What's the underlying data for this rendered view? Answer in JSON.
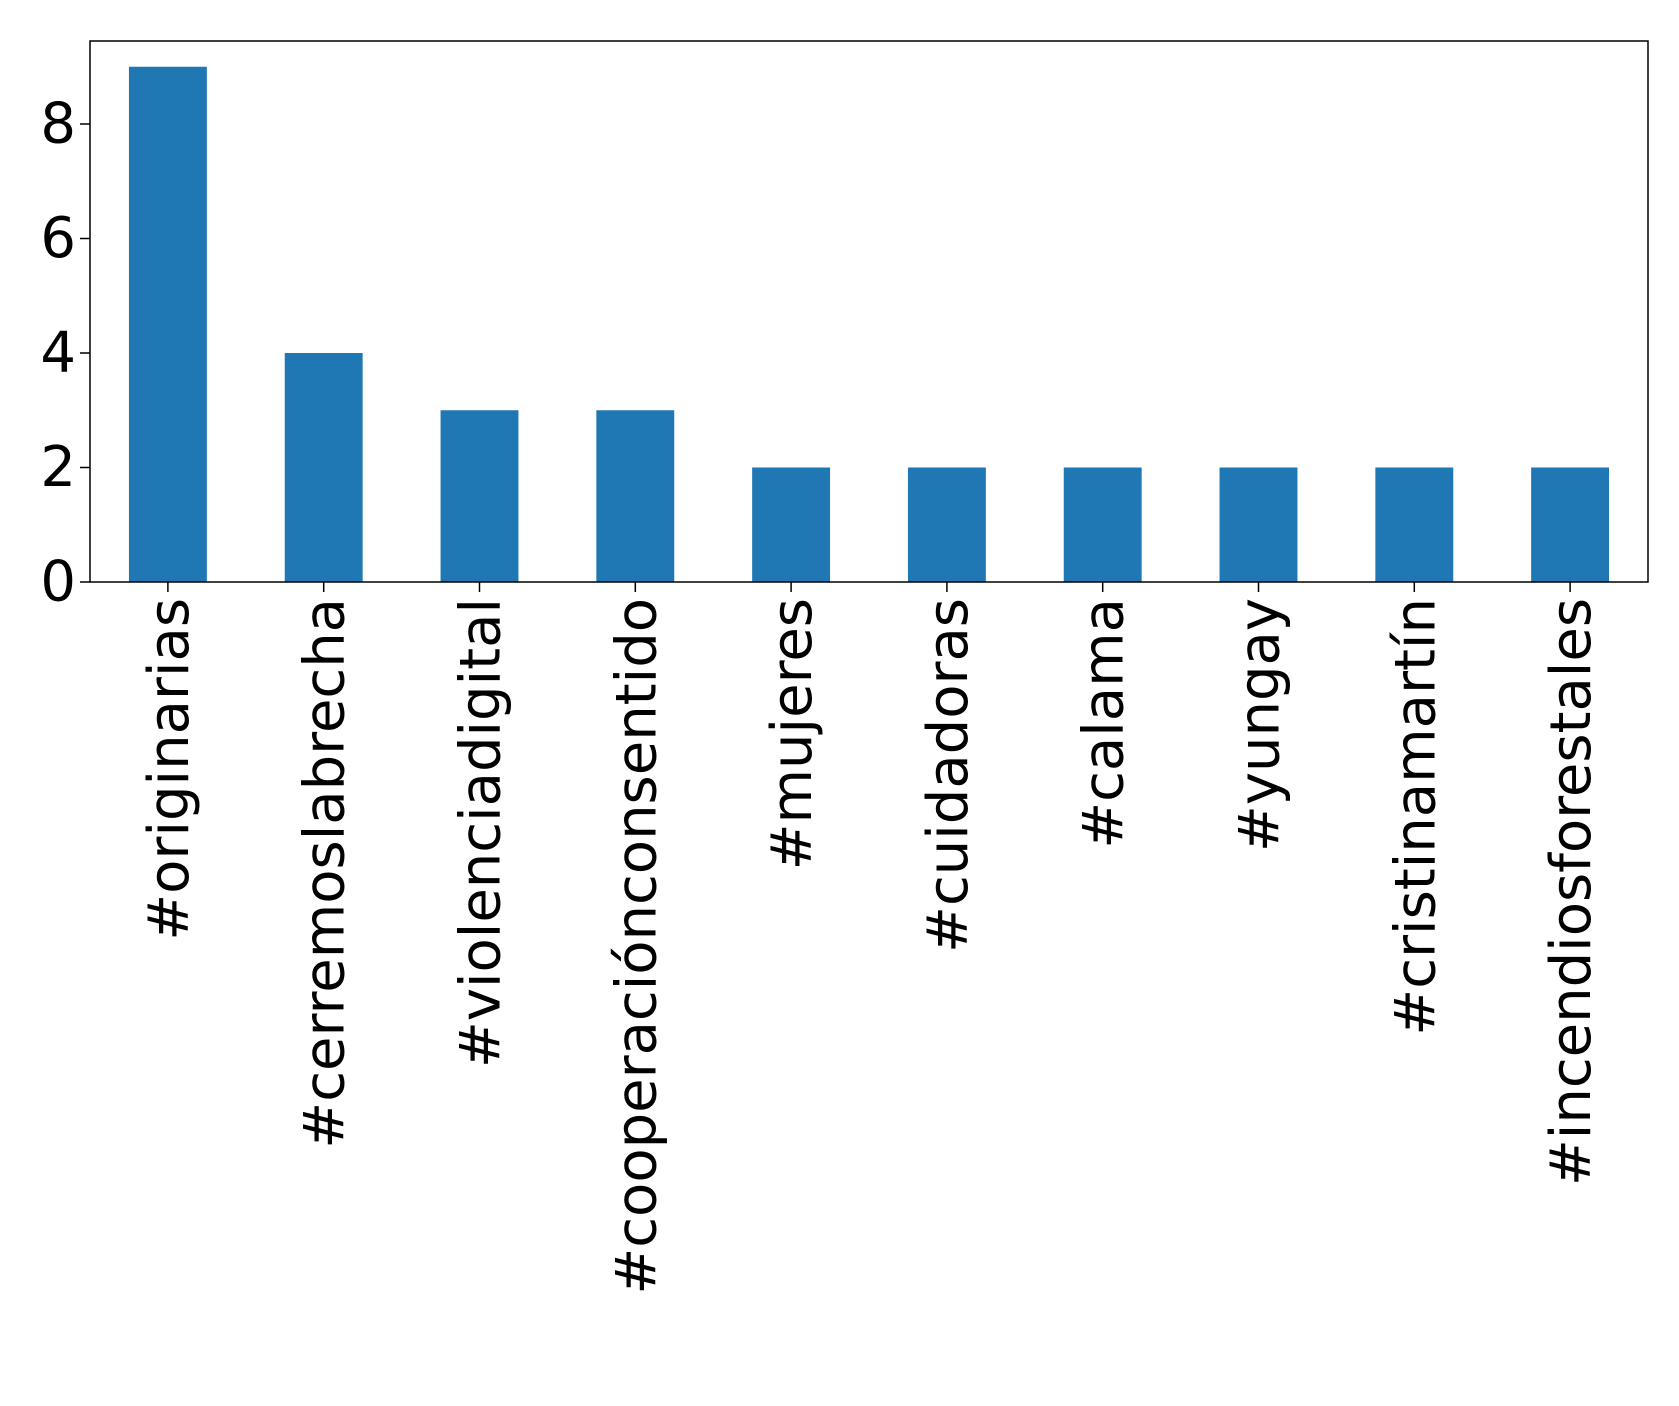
{
  "chart_data": {
    "type": "bar",
    "categories": [
      "#originarias",
      "#cerremoslabrecha",
      "#violenciadigital",
      "#cooperaciónconsentido",
      "#mujeres",
      "#cuidadoras",
      "#calama",
      "#yungay",
      "#cristinamartín",
      "#incendiosforestales"
    ],
    "values": [
      9,
      4,
      3,
      3,
      2,
      2,
      2,
      2,
      2,
      2
    ],
    "title": "",
    "xlabel": "",
    "ylabel": "",
    "ylim": [
      0,
      9.45
    ],
    "yticks": [
      0,
      2,
      4,
      6,
      8
    ],
    "grid": false,
    "legend": "none",
    "x_tick_rotation": "vertical",
    "colors": {
      "bar": "#1f77b4",
      "axis": "#000000",
      "background": "#ffffff"
    }
  }
}
